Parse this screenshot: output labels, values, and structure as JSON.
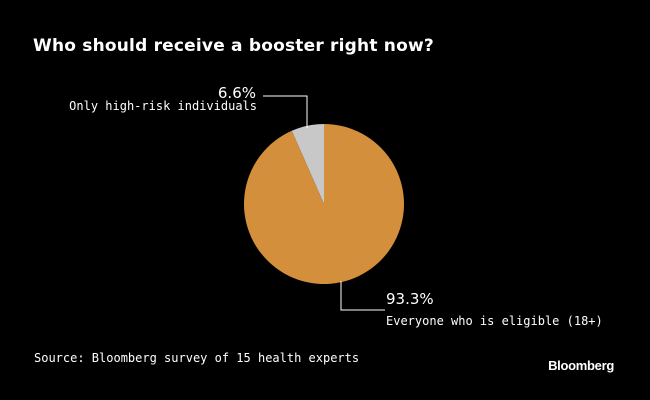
{
  "chart_data": {
    "type": "pie",
    "title": "Who should receive a booster right now?",
    "slices": [
      {
        "label": "Only high-risk individuals",
        "value": 6.6,
        "display": "6.6%",
        "color": "#c8c8c8"
      },
      {
        "label": "Everyone who is eligible (18+)",
        "value": 93.3,
        "display": "93.3%",
        "color": "#d38f3b"
      }
    ],
    "source": "Source: Bloomberg survey of 15 health experts"
  },
  "branding": {
    "logo_text": "Bloomberg"
  },
  "colors": {
    "background": "#000000",
    "text": "#ffffff",
    "leader_line": "#ffffff"
  }
}
